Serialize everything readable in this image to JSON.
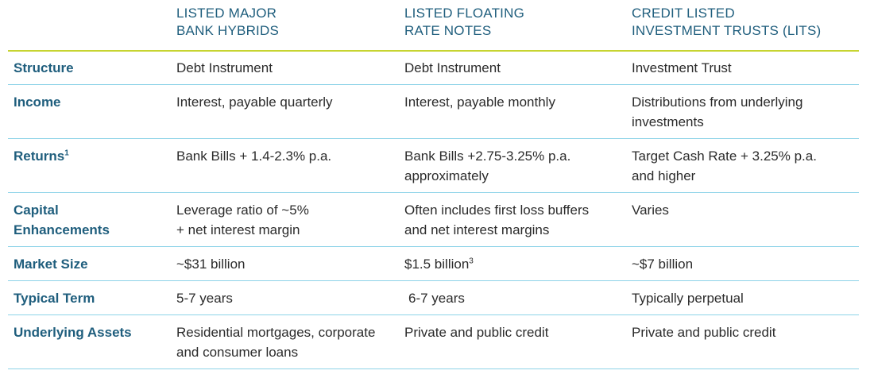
{
  "headers": {
    "col1_line1": "LISTED MAJOR",
    "col1_line2": "BANK HYBRIDS",
    "col2_line1": "LISTED FLOATING",
    "col2_line2": "RATE NOTES",
    "col3_line1": "CREDIT LISTED",
    "col3_line2": "INVESTMENT TRUSTS (LITS)"
  },
  "rows": {
    "structure": {
      "label": "Structure",
      "c1": "Debt Instrument",
      "c2": "Debt Instrument",
      "c3": "Investment Trust"
    },
    "income": {
      "label": "Income",
      "c1": "Interest, payable quarterly",
      "c2": "Interest, payable monthly",
      "c3_line1": "Distributions from underlying",
      "c3_line2": "investments"
    },
    "returns": {
      "label": "Returns",
      "label_sup": "1",
      "c1": "Bank Bills + 1.4-2.3% p.a.",
      "c2_line1": "Bank Bills +2.75-3.25% p.a.",
      "c2_line2": "approximately",
      "c3_line1": "Target Cash Rate + 3.25% p.a.",
      "c3_line2": "and higher"
    },
    "capital": {
      "label_line1": "Capital",
      "label_line2": "Enhancements",
      "c1_line1": "Leverage ratio of ~5%",
      "c1_line2": "+ net interest margin",
      "c2_line1": "Often includes first loss buffers",
      "c2_line2": "and net interest margins",
      "c3": "Varies"
    },
    "market_size": {
      "label": "Market Size",
      "c1": "~$31 billion",
      "c2": "$1.5 billion",
      "c2_sup": "3",
      "c3": "~$7 billion"
    },
    "typical_term": {
      "label": "Typical Term",
      "c1": "5-7 years",
      "c2": "6-7 years",
      "c3": "Typically perpetual"
    },
    "underlying_assets": {
      "label": "Underlying Assets",
      "c1_line1": "Residential mortgages, corporate",
      "c1_line2": "and consumer loans",
      "c2": "Private and public credit",
      "c3": "Private and public credit"
    }
  },
  "colors": {
    "heading_blue": "#1f5e7d",
    "top_rule_green": "#c7d431",
    "row_rule_cyan": "#8dd3e8",
    "body_text": "#2b2b2b"
  }
}
